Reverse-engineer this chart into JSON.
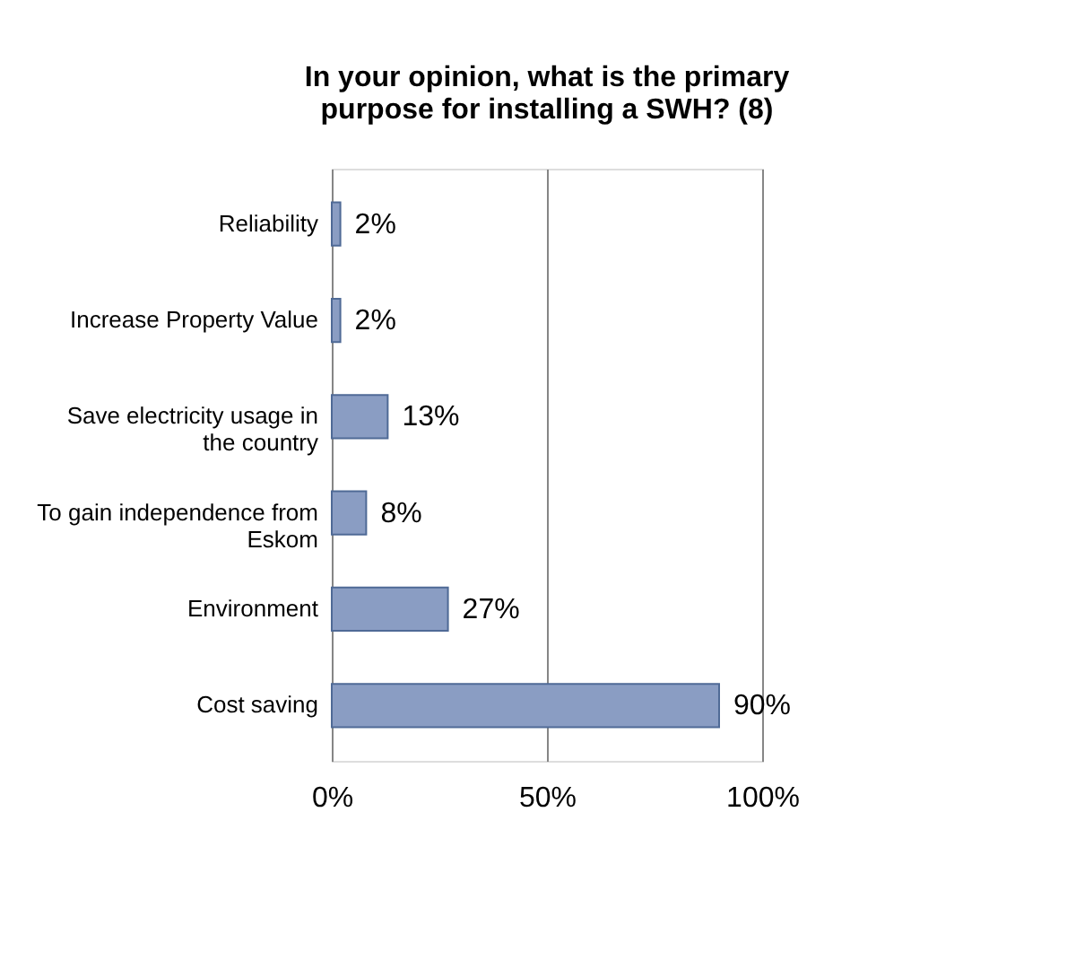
{
  "chart_data": {
    "type": "bar",
    "orientation": "horizontal",
    "title": "In your opinion, what is the primary purpose for installing a SWH? (8)",
    "categories": [
      "Reliability",
      "Increase Property Value",
      "Save electricity usage in the country",
      "To gain independence from Eskom",
      "Environment",
      "Cost saving"
    ],
    "values": [
      2,
      2,
      13,
      8,
      27,
      90
    ],
    "value_labels": [
      "2%",
      "2%",
      "13%",
      "8%",
      "27%",
      "90%"
    ],
    "color": "#8a9dc3",
    "xlim": [
      0,
      100
    ],
    "xticks": [
      {
        "value": 0,
        "label": "0%"
      },
      {
        "value": 50,
        "label": "50%"
      },
      {
        "value": 100,
        "label": "100%"
      }
    ],
    "grid": "x"
  }
}
